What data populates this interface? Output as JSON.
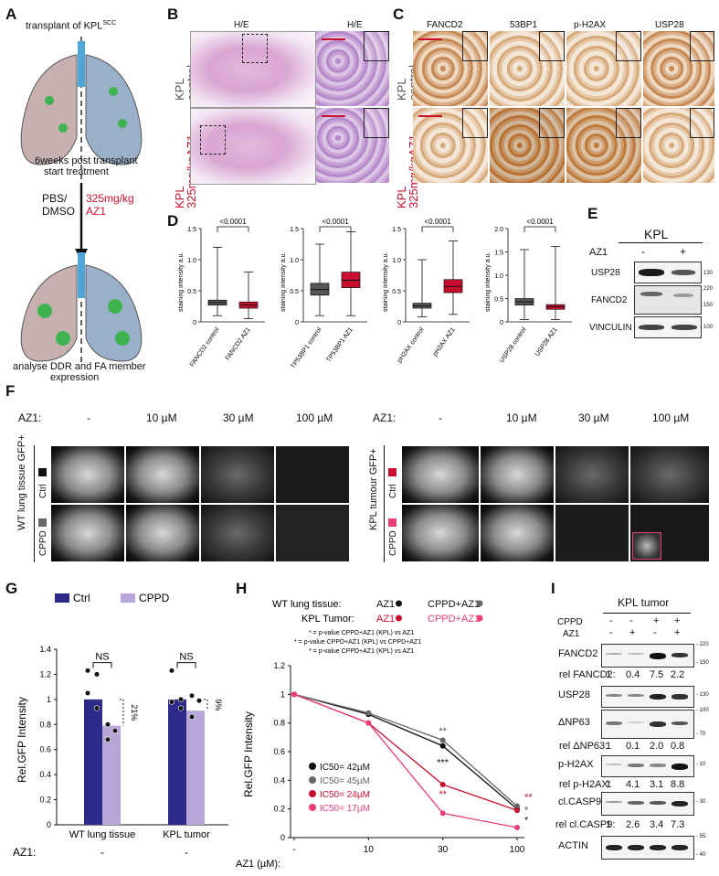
{
  "panel_letters": {
    "a": "A",
    "b": "B",
    "c": "C",
    "d": "D",
    "e": "E",
    "f": "F",
    "g": "G",
    "h": "H",
    "i": "I"
  },
  "panelA": {
    "title_main": "transplant of KPL",
    "title_sup": "SCC",
    "step1_line1": "6weeks post transplant",
    "step1_line2": "start treatment",
    "pbs_line1": "PBS/",
    "pbs_line2": "DMSO",
    "dose_line1": "325mg/kg",
    "dose_line2": "AZ1",
    "final_line1": "analyse DDR and FA member",
    "final_line2": "expression"
  },
  "panelB": {
    "col1": "H/E",
    "col2": "H/E",
    "row1_a": "KPL",
    "row1_b": "control",
    "row2_a": "KPL",
    "row2_b": "325mg/kgAZ1"
  },
  "panelC": {
    "cols": [
      "FANCD2",
      "53BP1",
      "p-H2AX",
      "USP28"
    ],
    "row1_a": "KPL",
    "row1_b": "control",
    "row2_a": "KPL",
    "row2_b": "325mg/kgAZ1"
  },
  "panelE": {
    "header": "KPL",
    "az1": "AZ1",
    "minus": "-",
    "plus": "+",
    "rows": [
      {
        "label": "USP28",
        "mw": [
          "130"
        ]
      },
      {
        "label": "FANCD2",
        "mw": [
          "220",
          "150"
        ]
      },
      {
        "label": "VINCULIN",
        "mw": [
          "100"
        ]
      }
    ]
  },
  "panelF": {
    "az1": "AZ1:",
    "doses": [
      "-",
      "10 µM",
      "30 µM",
      "100 µM"
    ],
    "left_side": "WT lung tissue GFP+",
    "right_side": "KPL tumour GFP+",
    "rows": [
      "Ctrl",
      "CPPD"
    ]
  },
  "panelI": {
    "title": "KPL tumor",
    "cppd": "CPPD",
    "az1": "AZ1",
    "cppd_signs": [
      "-",
      "-",
      "+",
      "+"
    ],
    "az1_signs": [
      "-",
      "+",
      "-",
      "+"
    ],
    "blots": [
      {
        "label": "FANCD2",
        "mw": [
          "220",
          "150"
        ],
        "rel_label": "rel FANCD2:",
        "rel": [
          "1",
          "0.4",
          "7.5",
          "2.2"
        ]
      },
      {
        "label": "USP28",
        "mw": [
          "130"
        ],
        "rel_label": "",
        "rel": []
      },
      {
        "label": "ΔNP63",
        "mw": [
          "100",
          "70"
        ],
        "rel_label": "rel ΔNP63:",
        "rel": [
          "1",
          "0.1",
          "2.0",
          "0.8"
        ]
      },
      {
        "label": "p-H2AX",
        "mw": [
          "10"
        ],
        "rel_label": "rel p-H2AX:",
        "rel": [
          "1",
          "4.1",
          "3.1",
          "8.8"
        ]
      },
      {
        "label": "cl.CASP9",
        "mw": [
          "30"
        ],
        "rel_label": "rel cl.CASP9:",
        "rel": [
          "1",
          "2.6",
          "3.4",
          "7.3"
        ]
      },
      {
        "label": "ACTIN",
        "mw": [
          "55",
          "40"
        ],
        "rel_label": "",
        "rel": []
      }
    ]
  },
  "colors": {
    "red": "#c8102e",
    "box_gray": "#555555",
    "ctrl_bar": "#2e2a8a",
    "cppd_bar": "#b7a6d8",
    "line_wt_az1": "#111111",
    "line_wt_cppd": "#666666",
    "line_kpl_az1": "#c8102e",
    "line_kpl_cppd": "#e83e7a"
  },
  "chart_data": [
    {
      "id": "D",
      "type": "boxplot",
      "ylabel": "staining intensity a.u.",
      "panels": [
        {
          "labels": [
            "FANCD2 control",
            "FANCD2 AZ1"
          ],
          "pvalue": "<0.0001",
          "ylim": [
            0,
            1.5
          ],
          "yticks": [
            "0",
            "0.5",
            "1.0",
            "1.5"
          ],
          "boxes": [
            {
              "min": 0.1,
              "q1": 0.27,
              "median": 0.31,
              "q3": 0.35,
              "max": 1.2
            },
            {
              "min": 0.05,
              "q1": 0.22,
              "median": 0.27,
              "q3": 0.32,
              "max": 0.8
            }
          ]
        },
        {
          "labels": [
            "TP53BP1 control",
            "TP53BP1 AZ1"
          ],
          "pvalue": "<0.0001",
          "ylim": [
            0,
            1.5
          ],
          "yticks": [
            "0",
            "0.5",
            "1.0",
            "1.5"
          ],
          "boxes": [
            {
              "min": 0.1,
              "q1": 0.43,
              "median": 0.52,
              "q3": 0.62,
              "max": 1.25
            },
            {
              "min": 0.1,
              "q1": 0.55,
              "median": 0.67,
              "q3": 0.8,
              "max": 1.45
            }
          ]
        },
        {
          "labels": [
            "pH2AX control",
            "pH2AX AZ1"
          ],
          "pvalue": "<0.0001",
          "ylim": [
            0,
            1.5
          ],
          "yticks": [
            "0",
            "0.5",
            "1.0",
            "1.5"
          ],
          "boxes": [
            {
              "min": 0.08,
              "q1": 0.22,
              "median": 0.26,
              "q3": 0.3,
              "max": 1.0
            },
            {
              "min": 0.12,
              "q1": 0.47,
              "median": 0.57,
              "q3": 0.68,
              "max": 1.3
            }
          ]
        },
        {
          "labels": [
            "USP28 control",
            "USP28 AZ1"
          ],
          "pvalue": "<0.0001",
          "ylim": [
            0,
            2.0
          ],
          "yticks": [
            "0",
            "0.5",
            "1.0",
            "1.5",
            "2.0"
          ],
          "boxes": [
            {
              "min": 0.05,
              "q1": 0.36,
              "median": 0.43,
              "q3": 0.5,
              "max": 1.55
            },
            {
              "min": 0.05,
              "q1": 0.27,
              "median": 0.32,
              "q3": 0.37,
              "max": 1.62
            }
          ]
        }
      ]
    },
    {
      "id": "G",
      "type": "bar",
      "ylabel": "Rel.GFP Intensity",
      "categories": [
        "WT lung tissue",
        "KPL tumor"
      ],
      "series": [
        {
          "name": "Ctrl",
          "values": [
            1.0,
            1.0
          ],
          "points": [
            [
              1.23,
              1.2,
              1.05,
              0.93
            ],
            [
              1.23,
              1.0,
              0.98,
              0.93
            ]
          ]
        },
        {
          "name": "CPPD",
          "values": [
            0.79,
            0.91
          ],
          "points": [
            [
              0.8,
              0.75,
              0.68
            ],
            [
              1.03,
              0.99,
              0.86
            ]
          ]
        }
      ],
      "significance": [
        "NS",
        "NS"
      ],
      "percent": [
        "21%",
        "9%"
      ],
      "ylim": [
        0,
        1.4
      ],
      "yticks": [
        "0",
        "0.2",
        "0.4",
        "0.6",
        "0.8",
        "1",
        "1.2",
        "1.4"
      ],
      "az1_label": "AZ1:",
      "az1_values": [
        "-",
        "-"
      ]
    },
    {
      "id": "H",
      "type": "line",
      "ylabel": "Rel.GFP Intensity",
      "xlabel": "AZ1 (µM):",
      "x": [
        "-",
        "10",
        "30",
        "100"
      ],
      "ylim": [
        0,
        1.2
      ],
      "yticks": [
        "0",
        "0.2",
        "0.4",
        "0.6",
        "0.8",
        "1",
        "1.2"
      ],
      "legend_row1_label": "WT lung tissue:",
      "legend_row2_label": "KPL Tumor:",
      "series": [
        {
          "name": "AZ1",
          "group": "WT lung tissue",
          "values": [
            1.0,
            0.86,
            0.64,
            0.2
          ]
        },
        {
          "name": "CPPD+AZ1",
          "group": "WT lung tissue",
          "values": [
            1.0,
            0.87,
            0.68,
            0.22
          ]
        },
        {
          "name": "AZ1",
          "group": "KPL Tumor",
          "values": [
            1.0,
            0.8,
            0.37,
            0.19
          ]
        },
        {
          "name": "CPPD+AZ1",
          "group": "KPL Tumor",
          "values": [
            1.0,
            0.8,
            0.17,
            0.07
          ]
        }
      ],
      "footnotes": [
        "* = p-value CPPD+AZ1 (KPL) vs AZ1",
        "* = p-value CPPD+AZ1 (KPL) vs CPPD+AZ1",
        "* = p-value CPPD+AZ1 (KPL) vs AZ1"
      ],
      "ic50": [
        "IC50= 42µM",
        "IC50= 45µM",
        "IC50= 24µM",
        "IC50= 17µM"
      ],
      "stars": [
        {
          "text": "**",
          "x": "30",
          "y": 0.72,
          "color": "#555555"
        },
        {
          "text": "***",
          "x": "30",
          "y": 0.5,
          "color": "#111111"
        },
        {
          "text": "**",
          "x": "30",
          "y": 0.28,
          "color": "#c8102e"
        },
        {
          "text": "**",
          "x": "100",
          "y": 0.26,
          "color": "#c8102e"
        },
        {
          "text": "*",
          "x": "100",
          "y": 0.17,
          "color": "#555555"
        },
        {
          "text": "*",
          "x": "100",
          "y": 0.1,
          "color": "#111111"
        }
      ]
    }
  ]
}
